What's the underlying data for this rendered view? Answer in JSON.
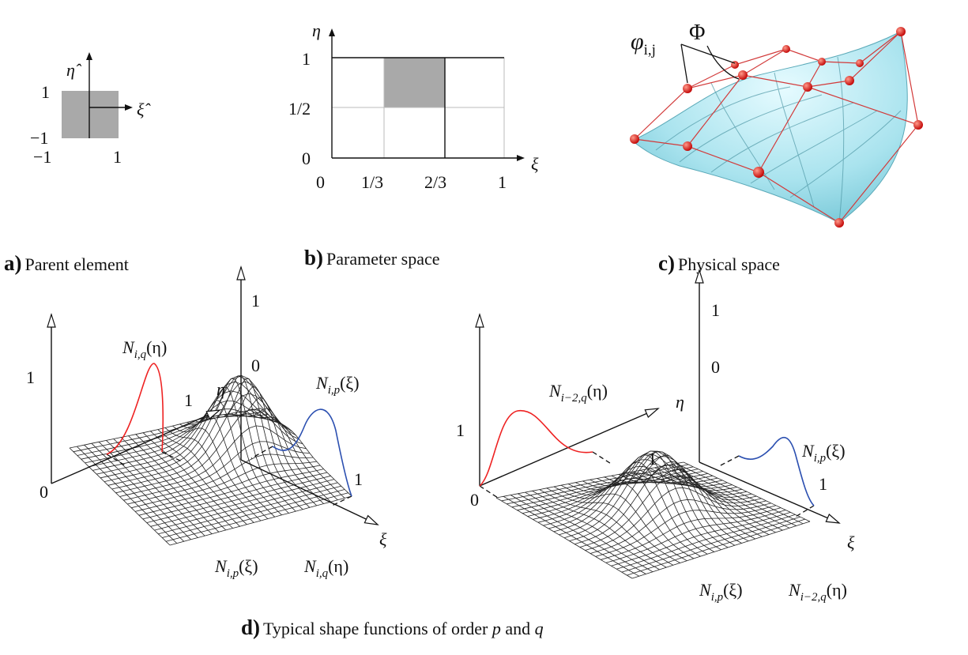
{
  "a": {
    "letter": "a)",
    "caption": "Parent element",
    "axis_x": "ξ̂",
    "axis_y": "η̂",
    "y_top": "1",
    "y_bottom": "−1",
    "x_left": "−1",
    "x_right": "1"
  },
  "b": {
    "letter": "b)",
    "caption": "Parameter space",
    "axis_x": "ξ",
    "axis_y": "η",
    "yticks": [
      "0",
      "1/2",
      "1"
    ],
    "xticks": [
      "0",
      "1/3",
      "2/3",
      "1"
    ]
  },
  "c": {
    "letter": "c)",
    "caption": "Physical space",
    "control_points": {
      "base": "φ",
      "sub": "i,j"
    },
    "surface": "Φ"
  },
  "d": {
    "letter": "d)",
    "caption": {
      "text": "Typical shape functions of order ",
      "p": "p",
      "and": " and ",
      "q": "q"
    },
    "left": {
      "eta_function": {
        "base": "N",
        "sub": "i,q",
        "arg": "(η)"
      },
      "xi_function": {
        "base": "N",
        "sub": "i,p",
        "arg": "(ξ)"
      },
      "product": [
        {
          "base": "N",
          "sub": "i,p",
          "arg": "(ξ)"
        },
        {
          "base": "N",
          "sub": "i,q",
          "arg": "(η)"
        }
      ],
      "eta_axis_top": "1",
      "origin": "0",
      "eta_end": "1",
      "xi_axis_top": "1",
      "xi_axis_zero": "0",
      "xi_end": "1",
      "axis_eta": "η",
      "axis_xi": "ξ"
    },
    "right": {
      "eta_function": {
        "base": "N",
        "sub": "i−2,q",
        "arg": "(η)"
      },
      "xi_function": {
        "base": "N",
        "sub": "i,p",
        "arg": "(ξ)"
      },
      "product": [
        {
          "base": "N",
          "sub": "i,p",
          "arg": "(ξ)"
        },
        {
          "base": "N",
          "sub": "i−2,q",
          "arg": "(η)"
        }
      ],
      "eta_axis_top": "1",
      "origin": "0",
      "eta_end": "1",
      "xi_axis_top": "1",
      "xi_axis_zero": "0",
      "xi_end": "1",
      "axis_eta": "η",
      "axis_xi": "ξ"
    }
  }
}
